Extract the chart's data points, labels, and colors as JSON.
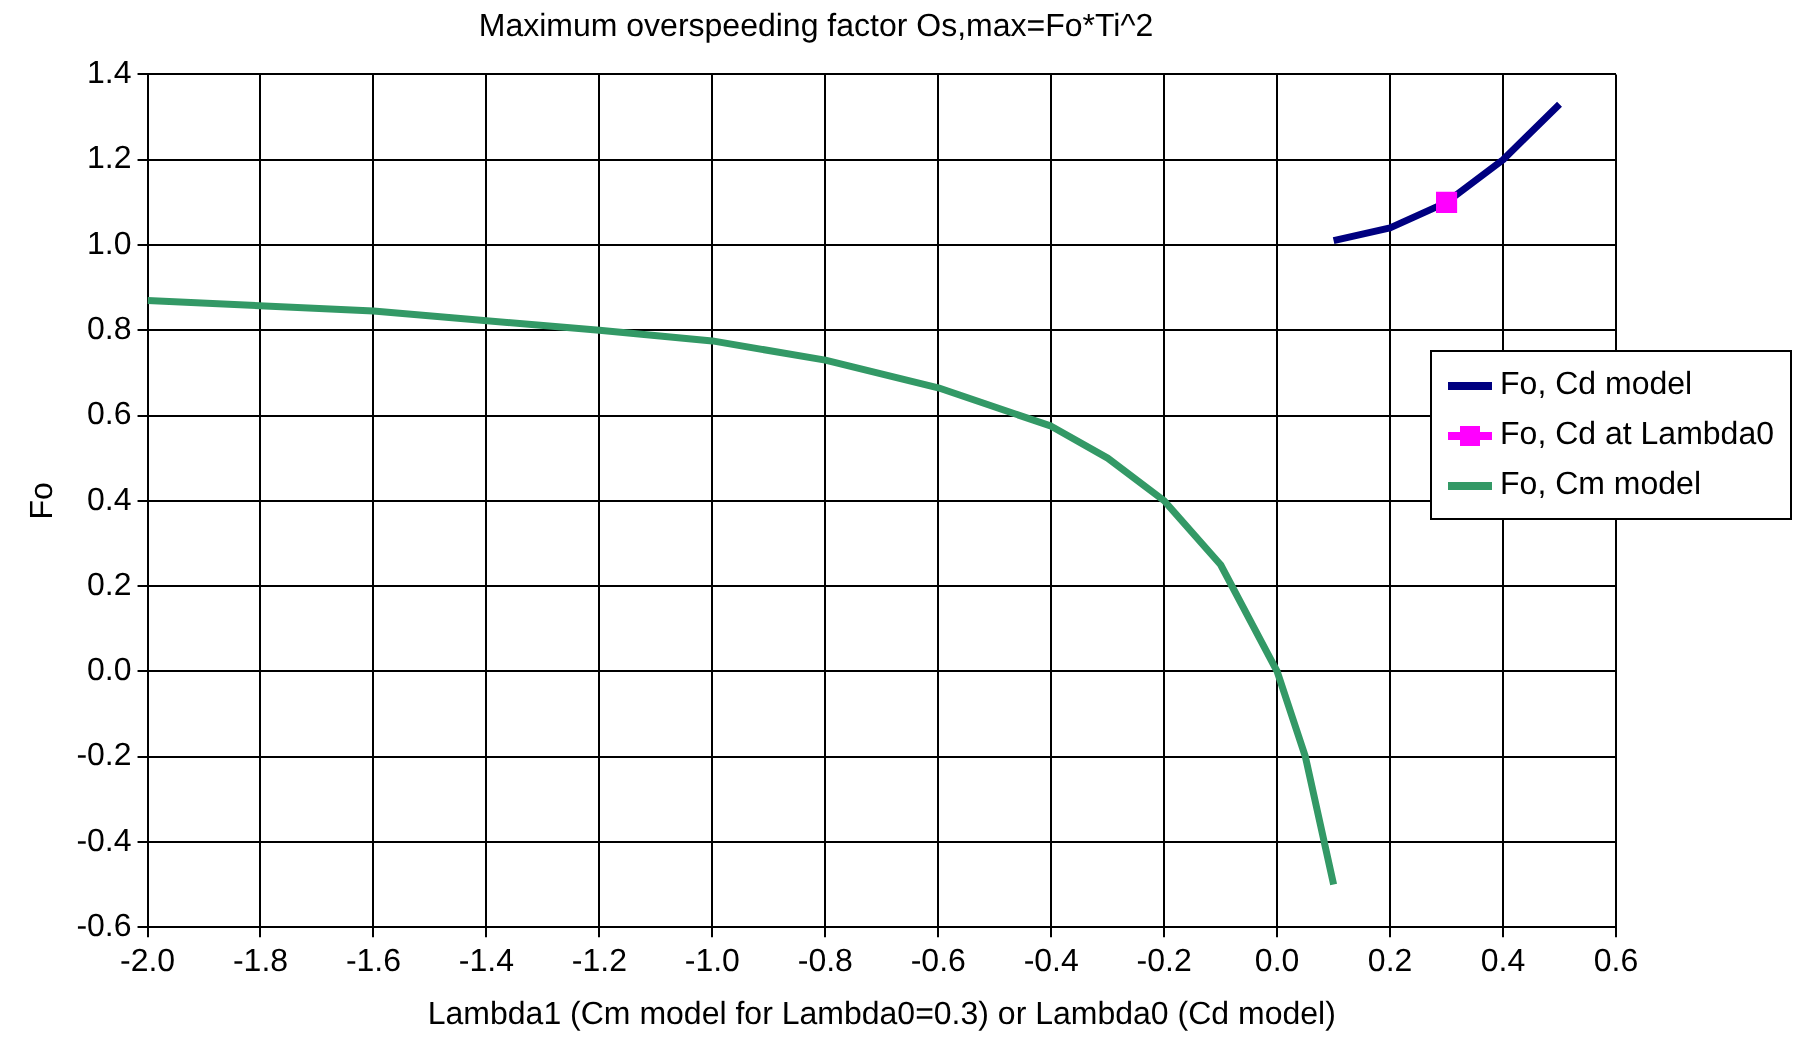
{
  "chart_data": {
    "type": "line",
    "title": "Maximum overspeeding factor Os,max=Fo*Ti^2",
    "xlabel": "Lambda1 (Cm model for Lambda0=0.3) or Lambda0 (Cd model)",
    "ylabel": "Fo",
    "xlim": [
      -2,
      0.6
    ],
    "xticks": [
      {
        "value": -2,
        "label": "-2.0"
      },
      -1.8,
      -1.6,
      -1.4,
      -1.2,
      {
        "value": -1,
        "label": "-1.0"
      },
      -0.8,
      -0.6,
      -0.4,
      -0.2,
      {
        "value": 0,
        "label": "0.0"
      },
      0.2,
      0.4,
      0.6
    ],
    "ylim": [
      -0.6,
      1.4
    ],
    "yticks": [
      -0.6,
      -0.4,
      -0.2,
      {
        "value": 0,
        "label": "0.0"
      },
      0.2,
      0.4,
      0.6,
      0.8,
      {
        "value": 1,
        "label": "1.0"
      },
      1.2,
      1.4
    ],
    "grid": true,
    "legend": "right",
    "line_style": "solid",
    "series": [
      {
        "name": "Fo, Cd model",
        "color": "#000080",
        "marker": "none",
        "x": [
          0.1,
          0.2,
          0.3,
          0.4,
          0.5
        ],
        "values": [
          1.01,
          1.04,
          1.1,
          1.2,
          1.33
        ]
      },
      {
        "name": "Fo, Cd at Lambda0",
        "color": "#ff00ff",
        "marker": "square",
        "type": "scatter",
        "x": [
          0.3
        ],
        "values": [
          1.1
        ]
      },
      {
        "name": "Fo, Cm model",
        "color": "#339966",
        "marker": "none",
        "x": [
          -2,
          -1.6,
          -1.2,
          -1,
          -0.8,
          -0.6,
          -0.4,
          -0.3,
          -0.2,
          -0.1,
          0,
          0.05,
          0.1
        ],
        "values": [
          0.87,
          0.845,
          0.8,
          0.775,
          0.73,
          0.665,
          0.575,
          0.5,
          0.4,
          0.25,
          0,
          -0.2,
          -0.5
        ]
      }
    ]
  }
}
